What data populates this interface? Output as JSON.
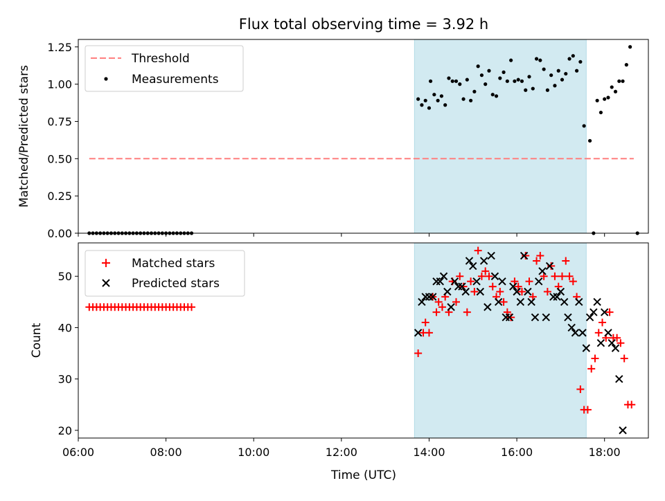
{
  "title": "Flux total observing time = 3.92 h",
  "colors": {
    "threshold": "#ff7f7f",
    "measurement": "#000000",
    "matched": "#ff0000",
    "predicted": "#000000",
    "span": "#add8e6"
  },
  "chart_data": [
    {
      "type": "scatter",
      "ylabel": "Matched/Predicted stars",
      "xlim": [
        "06:00",
        "19:00"
      ],
      "ylim": [
        0,
        1.3
      ],
      "y_ticks": [
        "0.00",
        "0.25",
        "0.50",
        "0.75",
        "1.00",
        "1.25"
      ],
      "y_tick_values": [
        0,
        0.25,
        0.5,
        0.75,
        1.0,
        1.25
      ],
      "shaded_span": [
        "13:40",
        "17:35"
      ],
      "legend": {
        "position": "upper left",
        "entries": [
          "Threshold",
          "Measurements"
        ]
      },
      "threshold": {
        "name": "Threshold",
        "y": 0.5,
        "x_range": [
          "06:15",
          "18:40"
        ]
      },
      "series": [
        {
          "name": "Measurements",
          "points": [
            [
              "06:15",
              0
            ],
            [
              "06:20",
              0
            ],
            [
              "06:25",
              0
            ],
            [
              "06:30",
              0
            ],
            [
              "06:35",
              0
            ],
            [
              "06:40",
              0
            ],
            [
              "06:45",
              0
            ],
            [
              "06:50",
              0
            ],
            [
              "06:55",
              0
            ],
            [
              "07:00",
              0
            ],
            [
              "07:05",
              0
            ],
            [
              "07:10",
              0
            ],
            [
              "07:15",
              0
            ],
            [
              "07:20",
              0
            ],
            [
              "07:25",
              0
            ],
            [
              "07:30",
              0
            ],
            [
              "07:35",
              0
            ],
            [
              "07:40",
              0
            ],
            [
              "07:45",
              0
            ],
            [
              "07:50",
              0
            ],
            [
              "07:55",
              0
            ],
            [
              "08:00",
              0
            ],
            [
              "08:05",
              0
            ],
            [
              "08:10",
              0
            ],
            [
              "08:15",
              0
            ],
            [
              "08:20",
              0
            ],
            [
              "08:25",
              0
            ],
            [
              "08:30",
              0
            ],
            [
              "08:35",
              0
            ],
            [
              "13:45",
              0.9
            ],
            [
              "13:50",
              0.86
            ],
            [
              "13:55",
              0.89
            ],
            [
              "14:00",
              0.84
            ],
            [
              "14:02",
              1.02
            ],
            [
              "14:07",
              0.93
            ],
            [
              "14:12",
              0.89
            ],
            [
              "14:17",
              0.92
            ],
            [
              "14:22",
              0.86
            ],
            [
              "14:27",
              1.04
            ],
            [
              "14:32",
              1.02
            ],
            [
              "14:37",
              1.02
            ],
            [
              "14:42",
              1.0
            ],
            [
              "14:47",
              0.9
            ],
            [
              "14:52",
              1.03
            ],
            [
              "14:57",
              0.89
            ],
            [
              "15:02",
              0.95
            ],
            [
              "15:07",
              1.12
            ],
            [
              "15:12",
              1.06
            ],
            [
              "15:17",
              1.0
            ],
            [
              "15:22",
              1.09
            ],
            [
              "15:27",
              0.93
            ],
            [
              "15:32",
              0.92
            ],
            [
              "15:37",
              1.04
            ],
            [
              "15:42",
              1.08
            ],
            [
              "15:47",
              1.02
            ],
            [
              "15:52",
              1.16
            ],
            [
              "15:57",
              1.02
            ],
            [
              "16:02",
              1.03
            ],
            [
              "16:07",
              1.02
            ],
            [
              "16:12",
              0.96
            ],
            [
              "16:17",
              1.05
            ],
            [
              "16:22",
              0.97
            ],
            [
              "16:27",
              1.17
            ],
            [
              "16:32",
              1.16
            ],
            [
              "16:37",
              1.1
            ],
            [
              "16:42",
              0.96
            ],
            [
              "16:47",
              1.06
            ],
            [
              "16:52",
              0.99
            ],
            [
              "16:57",
              1.09
            ],
            [
              "17:02",
              1.03
            ],
            [
              "17:07",
              1.07
            ],
            [
              "17:12",
              1.17
            ],
            [
              "17:17",
              1.19
            ],
            [
              "17:22",
              1.09
            ],
            [
              "17:27",
              1.15
            ],
            [
              "17:32",
              0.72
            ],
            [
              "17:40",
              0.62
            ],
            [
              "17:45",
              0
            ],
            [
              "17:50",
              0.89
            ],
            [
              "17:55",
              0.81
            ],
            [
              "18:00",
              0.9
            ],
            [
              "18:05",
              0.91
            ],
            [
              "18:10",
              0.98
            ],
            [
              "18:15",
              0.95
            ],
            [
              "18:20",
              1.02
            ],
            [
              "18:25",
              1.02
            ],
            [
              "18:30",
              1.13
            ],
            [
              "18:35",
              1.25
            ],
            [
              "18:45",
              0
            ]
          ]
        }
      ]
    },
    {
      "type": "scatter",
      "xlabel": "Time (UTC)",
      "ylabel": "Count",
      "xlim": [
        "06:00",
        "19:00"
      ],
      "ylim": [
        18.5,
        56.5
      ],
      "x_ticks": [
        "06:00",
        "08:00",
        "10:00",
        "12:00",
        "14:00",
        "16:00",
        "18:00"
      ],
      "y_ticks": [
        "20",
        "30",
        "40",
        "50"
      ],
      "y_tick_values": [
        20,
        30,
        40,
        50
      ],
      "shaded_span": [
        "13:40",
        "17:35"
      ],
      "legend": {
        "position": "upper left",
        "entries": [
          "Matched stars",
          "Predicted stars"
        ]
      },
      "series": [
        {
          "name": "Matched stars",
          "marker": "+",
          "points": [
            [
              "06:15",
              44
            ],
            [
              "06:20",
              44
            ],
            [
              "06:25",
              44
            ],
            [
              "06:30",
              44
            ],
            [
              "06:35",
              44
            ],
            [
              "06:40",
              44
            ],
            [
              "06:45",
              44
            ],
            [
              "06:50",
              44
            ],
            [
              "06:55",
              44
            ],
            [
              "07:00",
              44
            ],
            [
              "07:05",
              44
            ],
            [
              "07:10",
              44
            ],
            [
              "07:15",
              44
            ],
            [
              "07:20",
              44
            ],
            [
              "07:25",
              44
            ],
            [
              "07:30",
              44
            ],
            [
              "07:35",
              44
            ],
            [
              "07:40",
              44
            ],
            [
              "07:45",
              44
            ],
            [
              "07:50",
              44
            ],
            [
              "07:55",
              44
            ],
            [
              "08:00",
              44
            ],
            [
              "08:05",
              44
            ],
            [
              "08:10",
              44
            ],
            [
              "08:15",
              44
            ],
            [
              "08:20",
              44
            ],
            [
              "08:25",
              44
            ],
            [
              "08:30",
              44
            ],
            [
              "08:35",
              44
            ],
            [
              "13:45",
              35
            ],
            [
              "13:52",
              39
            ],
            [
              "13:55",
              41
            ],
            [
              "14:00",
              39
            ],
            [
              "14:05",
              46
            ],
            [
              "14:10",
              43
            ],
            [
              "14:13",
              45
            ],
            [
              "14:18",
              44
            ],
            [
              "14:22",
              46
            ],
            [
              "14:27",
              43
            ],
            [
              "14:32",
              49
            ],
            [
              "14:37",
              45
            ],
            [
              "14:42",
              50
            ],
            [
              "14:47",
              48
            ],
            [
              "14:52",
              43
            ],
            [
              "14:57",
              49
            ],
            [
              "15:02",
              47
            ],
            [
              "15:07",
              55
            ],
            [
              "15:12",
              50
            ],
            [
              "15:17",
              51
            ],
            [
              "15:22",
              50
            ],
            [
              "15:27",
              48
            ],
            [
              "15:32",
              46
            ],
            [
              "15:37",
              47
            ],
            [
              "15:42",
              45
            ],
            [
              "15:47",
              43
            ],
            [
              "15:52",
              42
            ],
            [
              "15:57",
              49
            ],
            [
              "16:02",
              48
            ],
            [
              "16:07",
              47
            ],
            [
              "16:12",
              54
            ],
            [
              "16:17",
              49
            ],
            [
              "16:22",
              46
            ],
            [
              "16:27",
              53
            ],
            [
              "16:32",
              54
            ],
            [
              "16:37",
              50
            ],
            [
              "16:42",
              47
            ],
            [
              "16:47",
              52
            ],
            [
              "16:52",
              50
            ],
            [
              "16:57",
              48
            ],
            [
              "17:02",
              50
            ],
            [
              "17:07",
              53
            ],
            [
              "17:12",
              50
            ],
            [
              "17:17",
              49
            ],
            [
              "17:22",
              46
            ],
            [
              "17:27",
              28
            ],
            [
              "17:32",
              24
            ],
            [
              "17:37",
              24
            ],
            [
              "17:42",
              32
            ],
            [
              "17:47",
              34
            ],
            [
              "17:52",
              39
            ],
            [
              "17:57",
              41
            ],
            [
              "18:02",
              38
            ],
            [
              "18:07",
              43
            ],
            [
              "18:12",
              38
            ],
            [
              "18:17",
              38
            ],
            [
              "18:22",
              37
            ],
            [
              "18:27",
              34
            ],
            [
              "18:32",
              25
            ],
            [
              "18:37",
              25
            ]
          ]
        },
        {
          "name": "Predicted stars",
          "marker": "x",
          "points": [
            [
              "13:45",
              39
            ],
            [
              "13:50",
              45
            ],
            [
              "13:55",
              46
            ],
            [
              "14:00",
              46
            ],
            [
              "14:05",
              46
            ],
            [
              "14:10",
              49
            ],
            [
              "14:15",
              49
            ],
            [
              "14:20",
              50
            ],
            [
              "14:25",
              47
            ],
            [
              "14:30",
              44
            ],
            [
              "14:35",
              49
            ],
            [
              "14:40",
              48
            ],
            [
              "14:45",
              48
            ],
            [
              "14:50",
              47
            ],
            [
              "14:55",
              53
            ],
            [
              "15:00",
              52
            ],
            [
              "15:05",
              49
            ],
            [
              "15:10",
              47
            ],
            [
              "15:15",
              53
            ],
            [
              "15:20",
              44
            ],
            [
              "15:25",
              54
            ],
            [
              "15:30",
              50
            ],
            [
              "15:35",
              45
            ],
            [
              "15:40",
              49
            ],
            [
              "15:45",
              42
            ],
            [
              "15:50",
              42
            ],
            [
              "15:55",
              48
            ],
            [
              "16:00",
              47
            ],
            [
              "16:05",
              45
            ],
            [
              "16:10",
              54
            ],
            [
              "16:15",
              47
            ],
            [
              "16:20",
              45
            ],
            [
              "16:25",
              42
            ],
            [
              "16:30",
              49
            ],
            [
              "16:35",
              51
            ],
            [
              "16:40",
              42
            ],
            [
              "16:45",
              52
            ],
            [
              "16:50",
              46
            ],
            [
              "16:55",
              46
            ],
            [
              "17:00",
              47
            ],
            [
              "17:05",
              45
            ],
            [
              "17:10",
              42
            ],
            [
              "17:15",
              40
            ],
            [
              "17:20",
              39
            ],
            [
              "17:25",
              45
            ],
            [
              "17:30",
              39
            ],
            [
              "17:35",
              36
            ],
            [
              "17:40",
              42
            ],
            [
              "17:45",
              43
            ],
            [
              "17:50",
              45
            ],
            [
              "17:55",
              37
            ],
            [
              "18:00",
              43
            ],
            [
              "18:05",
              39
            ],
            [
              "18:10",
              37
            ],
            [
              "18:15",
              36
            ],
            [
              "18:20",
              30
            ],
            [
              "18:25",
              20
            ]
          ]
        }
      ]
    }
  ]
}
